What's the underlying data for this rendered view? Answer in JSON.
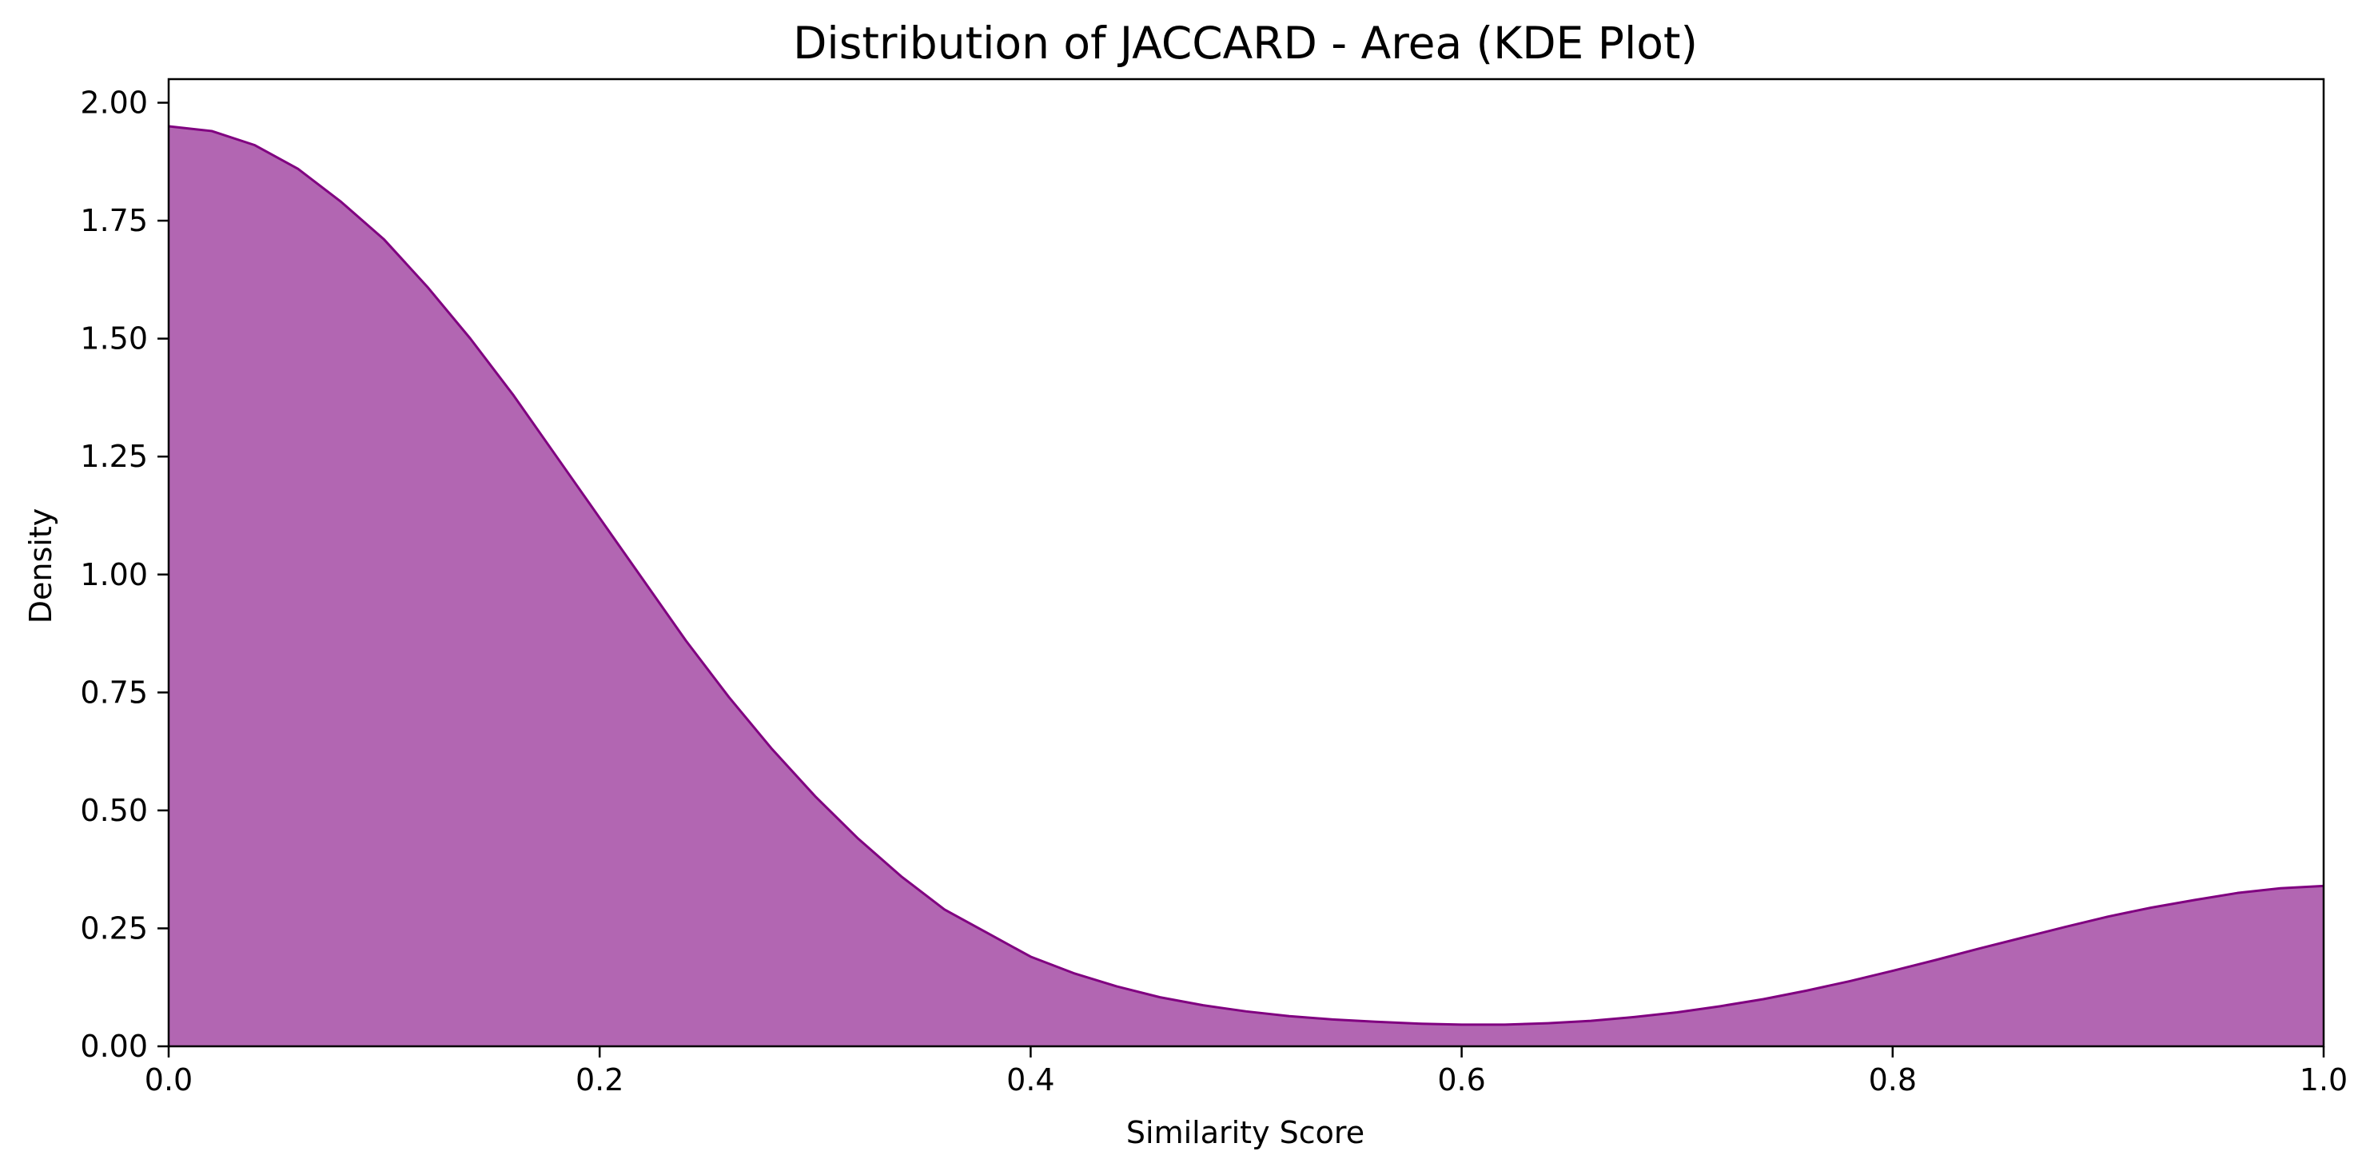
{
  "chart_data": {
    "type": "area",
    "title": "Distribution of JACCARD - Area (KDE Plot)",
    "xlabel": "Similarity Score",
    "ylabel": "Density",
    "xlim": [
      0.0,
      1.0
    ],
    "ylim": [
      0.0,
      2.05
    ],
    "x_ticks": [
      "0.0",
      "0.2",
      "0.4",
      "0.6",
      "0.8",
      "1.0"
    ],
    "y_ticks": [
      "0.00",
      "0.25",
      "0.50",
      "0.75",
      "1.00",
      "1.25",
      "1.50",
      "1.75",
      "2.00"
    ],
    "grid": false,
    "legend": "none",
    "series": [
      {
        "x": [
          0.0,
          0.02,
          0.04,
          0.06,
          0.08,
          0.1,
          0.12,
          0.14,
          0.16,
          0.18,
          0.2,
          0.22,
          0.24,
          0.26,
          0.28,
          0.3,
          0.32,
          0.34,
          0.36,
          0.38,
          0.4,
          0.42,
          0.44,
          0.46,
          0.48,
          0.5,
          0.52,
          0.54,
          0.56,
          0.58,
          0.6,
          0.62,
          0.64,
          0.66,
          0.68,
          0.7,
          0.72,
          0.74,
          0.76,
          0.78,
          0.8,
          0.82,
          0.84,
          0.86,
          0.88,
          0.9,
          0.92,
          0.94,
          0.96,
          0.98,
          1.0
        ],
        "y": [
          1.95,
          1.94,
          1.91,
          1.86,
          1.79,
          1.71,
          1.61,
          1.5,
          1.38,
          1.25,
          1.12,
          0.99,
          0.86,
          0.74,
          0.63,
          0.53,
          0.44,
          0.36,
          0.29,
          0.24,
          0.19,
          0.155,
          0.127,
          0.104,
          0.087,
          0.074,
          0.064,
          0.057,
          0.052,
          0.048,
          0.046,
          0.046,
          0.049,
          0.054,
          0.062,
          0.072,
          0.085,
          0.1,
          0.118,
          0.138,
          0.16,
          0.183,
          0.207,
          0.23,
          0.253,
          0.275,
          0.294,
          0.31,
          0.325,
          0.335,
          0.34
        ]
      }
    ],
    "colors": {
      "fill": "#b266b2",
      "line": "#800080",
      "axes": "#000000"
    }
  }
}
